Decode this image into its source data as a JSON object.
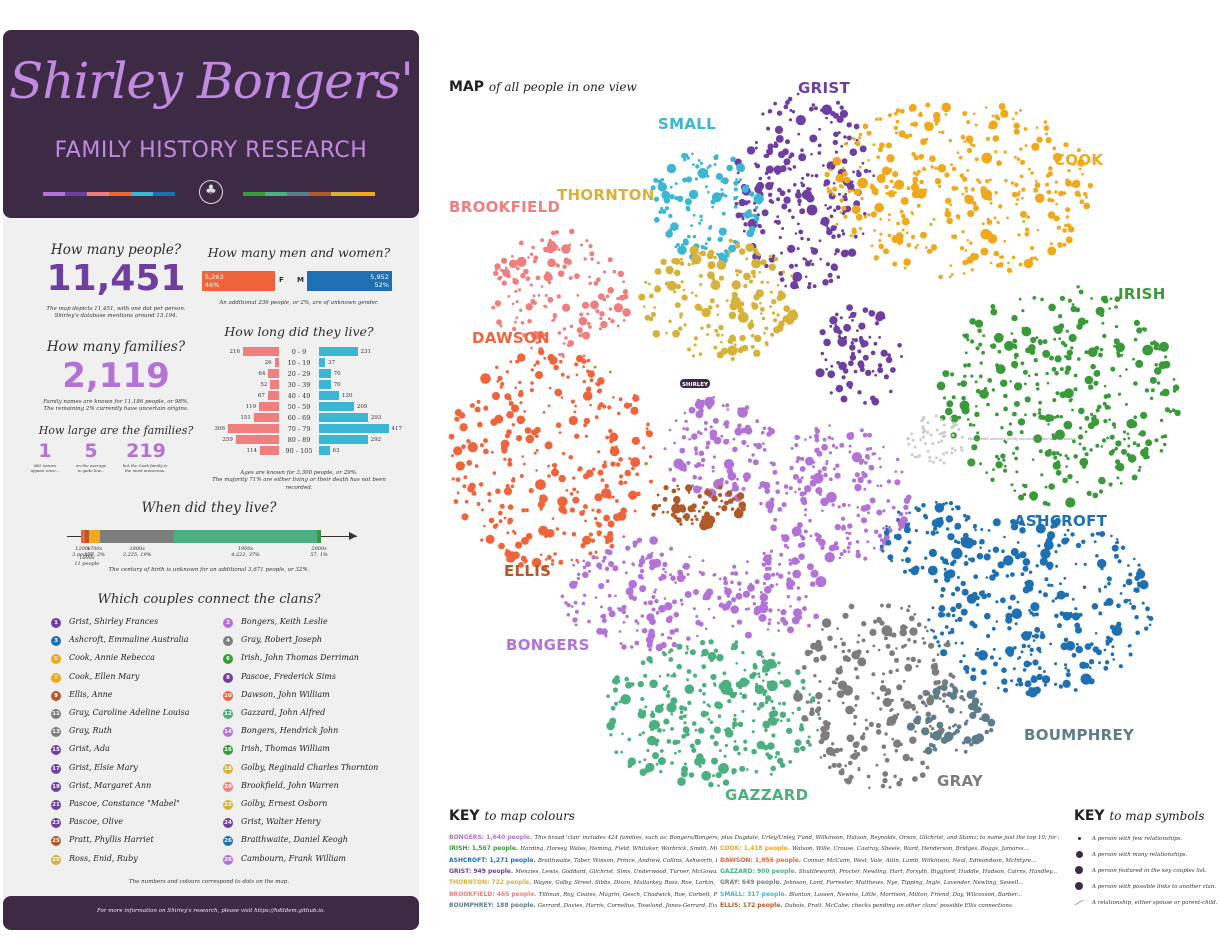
{
  "header": {
    "title": "Shirley Bongers'",
    "subtitle": "FAMILY HISTORY RESEARCH",
    "bar_colors_left": [
      "#b373d6",
      "#6e3fa0",
      "#ef7f7f",
      "#f0643c",
      "#3bb7d4",
      "#1f6fb3"
    ],
    "bar_colors_right": [
      "#3a9a3a",
      "#4caf80",
      "#5d7d8a",
      "#b05a2a",
      "#d6b23a",
      "#f0a81c"
    ],
    "tree_icon": "tree-icon"
  },
  "people": {
    "question": "How many people?",
    "value": "11,451",
    "note_1": "The map depicts 11,451, with one dot per person.",
    "note_2": "Shirley's database mentions around 13,194."
  },
  "families": {
    "question": "How many families?",
    "value": "2,119",
    "note_1": "Family names are known for 11,186 people, or 98%.",
    "note_2": "The remaining 2% currently have uncertain origins."
  },
  "family_size": {
    "question": "How large are the families?",
    "values": [
      {
        "value": "1",
        "note": "882 names appear once..."
      },
      {
        "value": "5",
        "note": "on the average is quite low..."
      },
      {
        "value": "219",
        "note": "but the Cook family is the most numerous."
      }
    ]
  },
  "gender": {
    "question": "How many men and women?",
    "female": {
      "count": "5,263",
      "pct": "46%",
      "letter": "F"
    },
    "male": {
      "count": "5,952",
      "pct": "52%",
      "letter": "M"
    },
    "note": "An additional 236 people, or 2%, are of unknown gender.",
    "female_share": 46,
    "male_share": 52
  },
  "lifespan": {
    "question": "How long did they live?",
    "rows": [
      {
        "label": "0 - 9",
        "female": 216,
        "male": 231
      },
      {
        "label": "10 - 19",
        "female": 26,
        "male": 37
      },
      {
        "label": "20 - 29",
        "female": 64,
        "male": 70
      },
      {
        "label": "30 - 39",
        "female": 52,
        "male": 70
      },
      {
        "label": "40 - 49",
        "female": 67,
        "male": 120
      },
      {
        "label": "50 - 59",
        "female": 119,
        "male": 209
      },
      {
        "label": "60 - 69",
        "female": 151,
        "male": 293
      },
      {
        "label": "70 - 79",
        "female": 306,
        "male": 417
      },
      {
        "label": "80 - 89",
        "female": 259,
        "male": 292
      },
      {
        "label": "90 - 105",
        "female": 114,
        "male": 63
      }
    ],
    "note_1": "Ages are known for 3,300 people, or 29%.",
    "note_2": "The majority 71% are either living or their death has not been recorded."
  },
  "timeline": {
    "question": "When did they live?",
    "segments": [
      {
        "label": "1200s",
        "sub": "3 people",
        "share": 1,
        "color": "#f0643c"
      },
      {
        "label": "1600s",
        "sub": "11 people",
        "share": 1,
        "color": "#b05a2a"
      },
      {
        "label": "1700s",
        "sub": "277, 2%",
        "share": 3,
        "color": "#f0a81c"
      },
      {
        "label": "1800s",
        "sub": "2,225, 19%",
        "share": 19,
        "color": "#7d7d7d"
      },
      {
        "label": "1900s",
        "sub": "4,222, 37%",
        "share": 37,
        "color": "#4caf80"
      },
      {
        "label": "2000s",
        "sub": "57, 1%",
        "share": 1,
        "color": "#3a9a3a"
      }
    ],
    "note": "The century of birth is unknown for an additional 3,671 people, or 32%."
  },
  "couples": {
    "question": "Which couples connect the clans?",
    "items": [
      {
        "n": "1",
        "name": "Grist, Shirley Frances",
        "color": "#6e3fa0"
      },
      {
        "n": "2",
        "name": "Bongers, Keith Leslie",
        "color": "#b373d6"
      },
      {
        "n": "3",
        "name": "Ashcroft, Emmaline Australia",
        "color": "#1f6fb3"
      },
      {
        "n": "4",
        "name": "Gray, Robert Joseph",
        "color": "#7d7d7d"
      },
      {
        "n": "5",
        "name": "Cook, Annie Rebecca",
        "color": "#f0a81c"
      },
      {
        "n": "6",
        "name": "Irish, John Thomas Derriman",
        "color": "#3a9a3a"
      },
      {
        "n": "7",
        "name": "Cook, Ellen Mary",
        "color": "#f0a81c"
      },
      {
        "n": "8",
        "name": "Pascoe, Frederick Sims",
        "color": "#6e3fa0"
      },
      {
        "n": "9",
        "name": "Ellis, Anne",
        "color": "#b05a2a"
      },
      {
        "n": "10",
        "name": "Dawson, John William",
        "color": "#f0643c"
      },
      {
        "n": "11",
        "name": "Gray, Caroline Adeline Louisa",
        "color": "#7d7d7d"
      },
      {
        "n": "12",
        "name": "Gazzard, John Alfred",
        "color": "#4caf80"
      },
      {
        "n": "13",
        "name": "Gray, Ruth",
        "color": "#7d7d7d"
      },
      {
        "n": "14",
        "name": "Bongers, Hendrick John",
        "color": "#b373d6"
      },
      {
        "n": "15",
        "name": "Grist, Ada",
        "color": "#6e3fa0"
      },
      {
        "n": "16",
        "name": "Irish, Thomas William",
        "color": "#3a9a3a"
      },
      {
        "n": "17",
        "name": "Grist, Elsie Mary",
        "color": "#6e3fa0"
      },
      {
        "n": "18",
        "name": "Golby, Reginald Charles Thornton",
        "color": "#d6b23a"
      },
      {
        "n": "19",
        "name": "Grist, Margaret Ann",
        "color": "#6e3fa0"
      },
      {
        "n": "20",
        "name": "Brookfield, John Warren",
        "color": "#ef7f7f"
      },
      {
        "n": "21",
        "name": "Pascoe, Constance \"Mabel\"",
        "color": "#6e3fa0"
      },
      {
        "n": "22",
        "name": "Golby, Ernest Osborn",
        "color": "#d6b23a"
      },
      {
        "n": "23",
        "name": "Pascoe, Olive",
        "color": "#6e3fa0"
      },
      {
        "n": "24",
        "name": "Grist, Walter Henry",
        "color": "#6e3fa0"
      },
      {
        "n": "25",
        "name": "Pratt, Phyllis Harriet",
        "color": "#b05a2a"
      },
      {
        "n": "26",
        "name": "Braithwaite, Daniel Keogh",
        "color": "#1f6fb3"
      },
      {
        "n": "25",
        "name": "Ross, Enid, Ruby",
        "color": "#d6b23a"
      },
      {
        "n": "26",
        "name": "Cambourn, Frank William",
        "color": "#b373d6"
      }
    ],
    "note": "The numbers and colours correspond to dots on the map."
  },
  "footer": {
    "text": "For more information on Shirley's research, please visit https://hdildem.github.io."
  },
  "map": {
    "heading": "MAP",
    "heading_sub": "of all people in one view",
    "center_label": "SHIRLEY",
    "unknown_note": "People with unknown family connections also seen Explainer",
    "clans": [
      {
        "name": "GRIST",
        "color": "#6e3fa0"
      },
      {
        "name": "SMALL",
        "color": "#3bb7d4"
      },
      {
        "name": "COOK",
        "color": "#f0a81c"
      },
      {
        "name": "THORNTON",
        "color": "#d6b23a"
      },
      {
        "name": "BROOKFIELD",
        "color": "#ef7f7f"
      },
      {
        "name": "IRISH",
        "color": "#3a9a3a"
      },
      {
        "name": "DAWSON",
        "color": "#f0643c"
      },
      {
        "name": "ASHCROFT",
        "color": "#1f6fb3"
      },
      {
        "name": "ELLIS",
        "color": "#b05a2a"
      },
      {
        "name": "BONGERS",
        "color": "#b373d6"
      },
      {
        "name": "BOUMPHREY",
        "color": "#5d7d8a"
      },
      {
        "name": "GRAY",
        "color": "#7d7d7d"
      },
      {
        "name": "GAZZARD",
        "color": "#4caf80"
      }
    ]
  },
  "key_colours": {
    "title": "KEY",
    "title_sub": "to map colours",
    "rows": [
      [
        {
          "clan": "BONGERS: 1,640 people.",
          "color": "#b373d6",
          "text": "This broad 'clan' includes 424 families, such as: Bongers/Bongers, plus Dugdale, Urley/Unley, Fund, Wilkinson, Hutson, Reynolds, Orson, Gilchrist, and Stamz; to name just the top 10; for more, see the online version."
        }
      ],
      [
        {
          "clan": "IRISH: 1,567 people.",
          "color": "#3a9a3a",
          "text": "Harding, Horsey, Wales, Heming, Field, Whitaker, Warbrick, Smith, Miller, Hill..."
        },
        {
          "clan": "COOK: 1,418 people.",
          "color": "#f0a81c",
          "text": "Watson, Wille, Crouse, Castray, Sheele, Ward, Henderson, Bridges, Boggs, Jamarss..."
        }
      ],
      [
        {
          "clan": "ASHCROFT: 1,271 people.",
          "color": "#1f6fb3",
          "text": "Braithwaite, Taber, Winson, Prince, Andrew, Collins, Ashworth, Dean, Martin, Fowler..."
        },
        {
          "clan": "DAWSON: 1,056 people.",
          "color": "#f0643c",
          "text": "Connor, McCann, West, Vale, Aitin, Lamb, Wilkinson, Neal, Edmondson, McIntyre..."
        }
      ],
      [
        {
          "clan": "GRIST: 949 people.",
          "color": "#6e3fa0",
          "text": "Menzies, Lewis, Goddard, Gilchrist, Sims, Underwood, Turner, McGowan, Mannell, Pascoe..."
        },
        {
          "clan": "GAZZARD: 900 people.",
          "color": "#4caf80",
          "text": "Shuttleworth, Procter, Newling, Hart, Forsyth, Biggford, Huddle, Hudson, Cairns, Handley..."
        }
      ],
      [
        {
          "clan": "THORNTON: 722 people.",
          "color": "#d6b23a",
          "text": "Wayne, Golby, Street, Sibbs, Dixon, Mullarkey, Ross, Roe, Larkin, Hutson..."
        },
        {
          "clan": "GRAY: 649 people.",
          "color": "#7d7d7d",
          "text": "Johnson, Lord, Forrester, Matthews, Nye, Tipping, Ingle, Lavender, Newling, Sewell..."
        }
      ],
      [
        {
          "clan": "BROOKFIELD: 465 people.",
          "color": "#ef7f7f",
          "text": "Tillman, Roy, Coates, Magrin, Gesch, Chadwick, Roe, Corbett, Powell, Nelson..."
        },
        {
          "clan": "SMALL: 317 people.",
          "color": "#3bb7d4",
          "text": "Blanton, Lassen, Newins, Little, Morrison, Milton, Friend, Day, Wilcoxson, Barber..."
        }
      ],
      [
        {
          "clan": "BOUMPHREY: 188 people.",
          "color": "#5d7d8a",
          "text": "Gerrard, Davies, Harris, Cornelius, Toseland, Jones-Gerrard, Evans, Wilson, Shield, Jones-Pritchard..."
        },
        {
          "clan": "ELLIS: 172 people.",
          "color": "#b05a2a",
          "text": "Dubois, Pratt, McCabe; checks pending on other clans' possible Ellis connections."
        }
      ]
    ]
  },
  "key_symbols": {
    "title": "KEY",
    "title_sub": "to map symbols",
    "items": [
      "A person with few relationships.",
      "A person with many relationships.",
      "A person featured in the key couples list.",
      "A person with possible links to another clan.",
      "A relationship, either spouse or parent-child."
    ]
  }
}
